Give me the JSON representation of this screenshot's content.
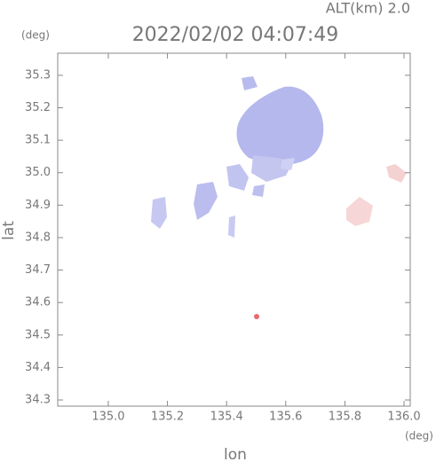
{
  "chart_data": {
    "type": "map",
    "title": "2022/02/02 04:07:49",
    "altitude_label": "ALT(km) 2.0",
    "y_unit": "(deg)",
    "x_unit": "(deg)",
    "xlabel": "lon",
    "ylabel": "lat",
    "xlim": [
      134.829,
      136.021
    ],
    "ylim": [
      34.281,
      35.368
    ],
    "xticks": [
      {
        "value": 135.0,
        "label": "135.0"
      },
      {
        "value": 135.2,
        "label": "135.2"
      },
      {
        "value": 135.4,
        "label": "135.4"
      },
      {
        "value": 135.6,
        "label": "135.6"
      },
      {
        "value": 135.8,
        "label": "135.8"
      },
      {
        "value": 136.0,
        "label": "136.0"
      }
    ],
    "yticks": [
      {
        "value": 34.3,
        "label": "34.3"
      },
      {
        "value": 34.4,
        "label": "34.4"
      },
      {
        "value": 34.5,
        "label": "34.5"
      },
      {
        "value": 34.6,
        "label": "34.6"
      },
      {
        "value": 34.7,
        "label": "34.7"
      },
      {
        "value": 34.8,
        "label": "34.8"
      },
      {
        "value": 34.9,
        "label": "34.9"
      },
      {
        "value": 35.0,
        "label": "35.0"
      },
      {
        "value": 35.1,
        "label": "35.1"
      },
      {
        "value": 35.2,
        "label": "35.2"
      },
      {
        "value": 35.3,
        "label": "35.3"
      }
    ]
  }
}
